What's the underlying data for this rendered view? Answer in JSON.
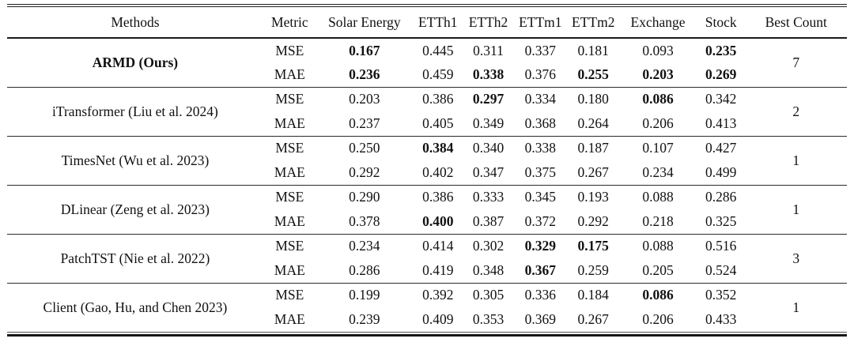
{
  "colors": {
    "text": "#111111",
    "rule": "#222222",
    "background": "#ffffff"
  },
  "table": {
    "headers": [
      "Methods",
      "Metric",
      "Solar Energy",
      "ETTh1",
      "ETTh2",
      "ETTm1",
      "ETTm2",
      "Exchange",
      "Stock",
      "Best Count"
    ],
    "rows": [
      {
        "method": "ARMD (Ours)",
        "method_bold": true,
        "best_count": "7",
        "mse": {
          "label": "MSE",
          "values": [
            "0.167",
            "0.445",
            "0.311",
            "0.337",
            "0.181",
            "0.093",
            "0.235"
          ],
          "bold": [
            true,
            false,
            false,
            false,
            false,
            false,
            true
          ]
        },
        "mae": {
          "label": "MAE",
          "values": [
            "0.236",
            "0.459",
            "0.338",
            "0.376",
            "0.255",
            "0.203",
            "0.269"
          ],
          "bold": [
            true,
            false,
            true,
            false,
            true,
            true,
            true
          ]
        }
      },
      {
        "method": "iTransformer (Liu et al. 2024)",
        "method_bold": false,
        "best_count": "2",
        "mse": {
          "label": "MSE",
          "values": [
            "0.203",
            "0.386",
            "0.297",
            "0.334",
            "0.180",
            "0.086",
            "0.342"
          ],
          "bold": [
            false,
            false,
            true,
            false,
            false,
            true,
            false
          ]
        },
        "mae": {
          "label": "MAE",
          "values": [
            "0.237",
            "0.405",
            "0.349",
            "0.368",
            "0.264",
            "0.206",
            "0.413"
          ],
          "bold": [
            false,
            false,
            false,
            false,
            false,
            false,
            false
          ]
        }
      },
      {
        "method": "TimesNet (Wu et al. 2023)",
        "method_bold": false,
        "best_count": "1",
        "mse": {
          "label": "MSE",
          "values": [
            "0.250",
            "0.384",
            "0.340",
            "0.338",
            "0.187",
            "0.107",
            "0.427"
          ],
          "bold": [
            false,
            true,
            false,
            false,
            false,
            false,
            false
          ]
        },
        "mae": {
          "label": "MAE",
          "values": [
            "0.292",
            "0.402",
            "0.347",
            "0.375",
            "0.267",
            "0.234",
            "0.499"
          ],
          "bold": [
            false,
            false,
            false,
            false,
            false,
            false,
            false
          ]
        }
      },
      {
        "method": "DLinear (Zeng et al. 2023)",
        "method_bold": false,
        "best_count": "1",
        "mse": {
          "label": "MSE",
          "values": [
            "0.290",
            "0.386",
            "0.333",
            "0.345",
            "0.193",
            "0.088",
            "0.286"
          ],
          "bold": [
            false,
            false,
            false,
            false,
            false,
            false,
            false
          ]
        },
        "mae": {
          "label": "MAE",
          "values": [
            "0.378",
            "0.400",
            "0.387",
            "0.372",
            "0.292",
            "0.218",
            "0.325"
          ],
          "bold": [
            false,
            true,
            false,
            false,
            false,
            false,
            false
          ]
        }
      },
      {
        "method": "PatchTST (Nie et al. 2022)",
        "method_bold": false,
        "best_count": "3",
        "mse": {
          "label": "MSE",
          "values": [
            "0.234",
            "0.414",
            "0.302",
            "0.329",
            "0.175",
            "0.088",
            "0.516"
          ],
          "bold": [
            false,
            false,
            false,
            true,
            true,
            false,
            false
          ]
        },
        "mae": {
          "label": "MAE",
          "values": [
            "0.286",
            "0.419",
            "0.348",
            "0.367",
            "0.259",
            "0.205",
            "0.524"
          ],
          "bold": [
            false,
            false,
            false,
            true,
            false,
            false,
            false
          ]
        }
      },
      {
        "method": "Client (Gao, Hu, and Chen 2023)",
        "method_bold": false,
        "best_count": "1",
        "mse": {
          "label": "MSE",
          "values": [
            "0.199",
            "0.392",
            "0.305",
            "0.336",
            "0.184",
            "0.086",
            "0.352"
          ],
          "bold": [
            false,
            false,
            false,
            false,
            false,
            true,
            false
          ]
        },
        "mae": {
          "label": "MAE",
          "values": [
            "0.239",
            "0.409",
            "0.353",
            "0.369",
            "0.267",
            "0.206",
            "0.433"
          ],
          "bold": [
            false,
            false,
            false,
            false,
            false,
            false,
            false
          ]
        }
      }
    ]
  }
}
